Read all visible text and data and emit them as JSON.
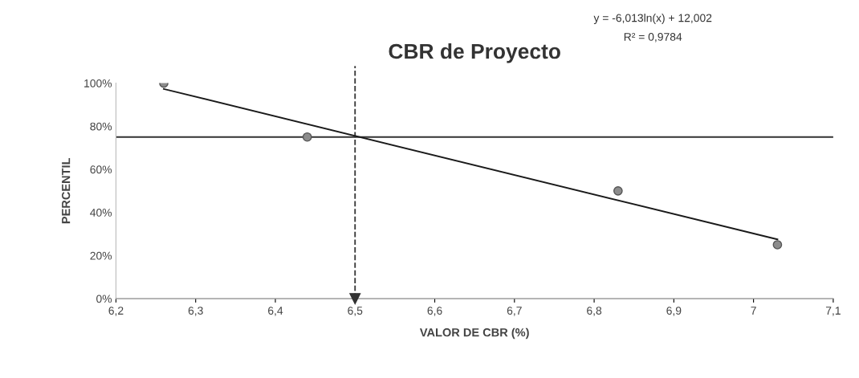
{
  "chart_data": {
    "type": "scatter",
    "title": "CBR de Proyecto",
    "xlabel": "VALOR DE CBR (%)",
    "ylabel": "PERCENTIL",
    "annotations": [
      "y = -6,013ln(x) + 12,002",
      "R² = 0,9784"
    ],
    "series": [
      {
        "color": "#8c8c8c",
        "x": [
          6.26,
          6.44,
          6.83,
          7.03
        ],
        "values": [
          100,
          75,
          50,
          25
        ],
        "marker": "circle"
      },
      {
        "type": "line",
        "color": "#1a1a1a",
        "x": [
          6.26,
          7.03
        ],
        "values": [
          97.3,
          27.5
        ],
        "marker": "none",
        "line_style": "solid"
      }
    ],
    "xlim": [
      6.2,
      7.1
    ],
    "xticks": [
      {
        "value": 6.2,
        "label": "6,2"
      },
      {
        "value": 6.3,
        "label": "6,3"
      },
      {
        "value": 6.4,
        "label": "6,4"
      },
      {
        "value": 6.5,
        "label": "6,5"
      },
      {
        "value": 6.6,
        "label": "6,6"
      },
      {
        "value": 6.7,
        "label": "6,7"
      },
      {
        "value": 6.8,
        "label": "6,8"
      },
      {
        "value": 6.9,
        "label": "6,9"
      },
      {
        "value": 7,
        "label": "7"
      },
      {
        "value": 7.1,
        "label": "7,1"
      }
    ],
    "ylim": [
      0,
      100
    ],
    "yticks": [
      {
        "value": 0,
        "label": "0%"
      },
      {
        "value": 20,
        "label": "20%"
      },
      {
        "value": 40,
        "label": "40%"
      },
      {
        "value": 60,
        "label": "60%"
      },
      {
        "value": 80,
        "label": "80%"
      },
      {
        "value": 100,
        "label": "100%"
      }
    ],
    "ref_lines": [
      {
        "axis": "y",
        "value": 75,
        "color": "#333333",
        "line_style": "solid"
      },
      {
        "axis": "x",
        "value": 6.5,
        "color": "#333333",
        "line_style": "dashed"
      }
    ],
    "grid": false
  }
}
